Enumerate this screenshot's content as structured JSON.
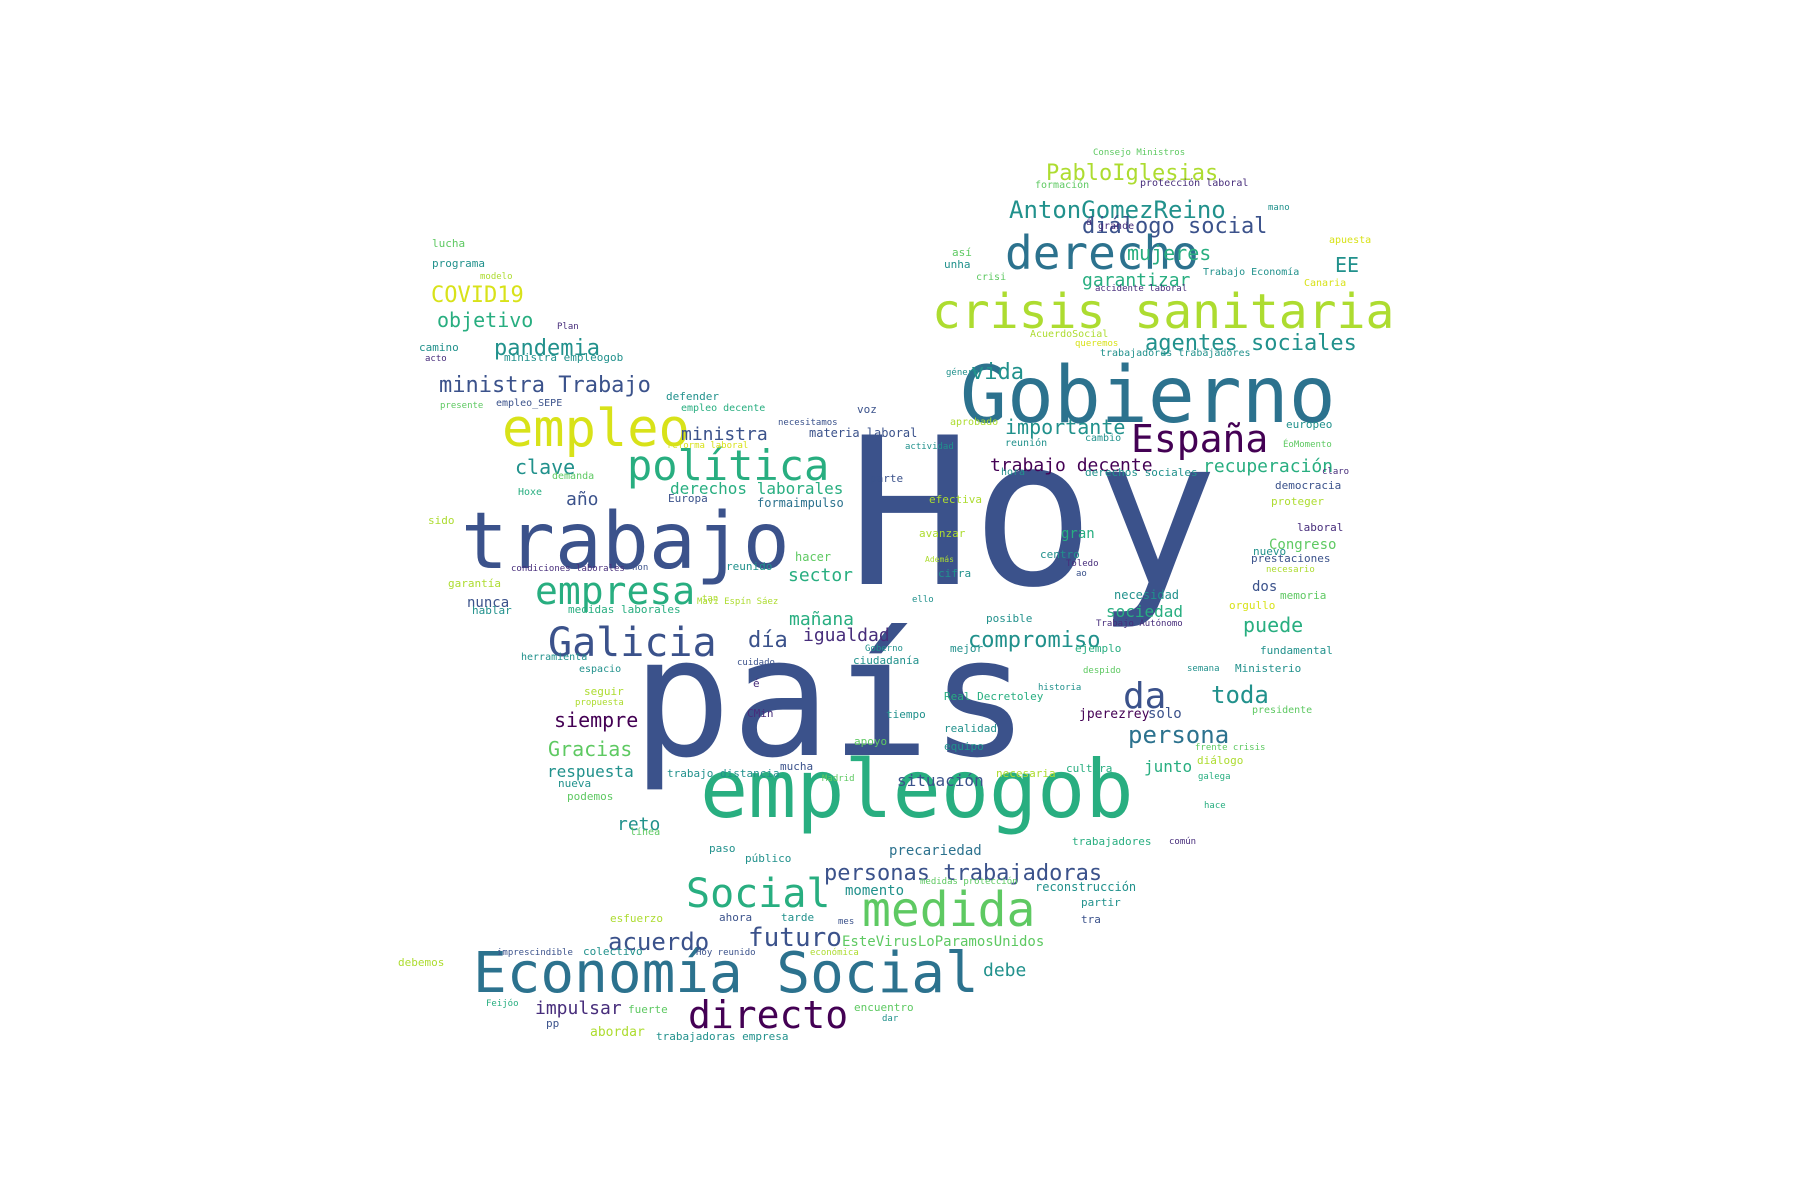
{
  "palette": {
    "dark_purple": "#440154",
    "purple": "#472d7b",
    "indigo": "#3b528b",
    "blue": "#2c728e",
    "teal": "#21918c",
    "green_teal": "#28ae80",
    "green": "#5ec962",
    "lime": "#addc30",
    "yellow": "#d8e219",
    "background": "#ffffff"
  },
  "words": [
    "Hoy",
    "país",
    "empleogob",
    "Gobierno",
    "trabajo",
    "Economía Social",
    "crisis sanitaria",
    "derecho",
    "empleo",
    "medida",
    "política",
    "empresa",
    "Galicia",
    "España",
    "directo",
    "Social",
    "AntonGomezReino",
    "PabloIglesias",
    "diálogo social",
    "agentes sociales",
    "compromiso",
    "futuro",
    "acuerdo",
    "personas trabajadoras",
    "da",
    "toda",
    "persona",
    "pandemia",
    "ministra Trabajo",
    "COVID19",
    "objetivo",
    "mujeres",
    "EE",
    "garantizar",
    "vida",
    "importante",
    "trabajo decente",
    "recuperación",
    "clave",
    "año",
    "ministra",
    "derechos laborales",
    "sector",
    "mañana",
    "día",
    "igualdad",
    "puede",
    "sociedad",
    "siempre",
    "Gracias",
    "respuesta",
    "reto",
    "impulsar",
    "debe",
    "Congreso",
    "dos",
    "junto",
    "solo",
    "situación",
    "precariedad",
    "momento",
    "EsteVirusLoParamosUnidos",
    "nunca",
    "gran",
    "necesidad",
    "hacer",
    "formaimpulso",
    "materia laboral",
    "lucha",
    "programa",
    "modelo",
    "camino",
    "acto",
    "Plan",
    "ministra empleogob",
    "empleo_SEPE",
    "presente",
    "defender",
    "empleo decente",
    "reforma laboral",
    "demanda",
    "Hoxe",
    "sido",
    "garantía",
    "condiciones laborales",
    "non",
    "medidas laborales",
    "hablar",
    "herramienta",
    "espacio",
    "seguir",
    "propuesta",
    "podemos",
    "nueva",
    "línea",
    "paso",
    "público",
    "trabajo distancia",
    "mucha",
    "Madrid",
    "necesaria",
    "cultura",
    "diálogo",
    "galega",
    "frente crisis",
    "hace",
    "común",
    "trabajadores",
    "reconstrucción",
    "partir",
    "tra",
    "ahora",
    "tarde",
    "esfuerzo",
    "colectivo",
    "Hoy reunido",
    "imprescindible",
    "económica",
    "debemos",
    "Feijóo",
    "fuerte",
    "pp",
    "abordar",
    "trabajadoras empresa",
    "encuentro",
    "dar",
    "mes",
    "medidas protección",
    "Consejo Ministros",
    "formación",
    "protección laboral",
    "mano",
    "grande",
    "á",
    "apuesta",
    "así",
    "unha",
    "Trabajo Economía",
    "crisi",
    "Canaria",
    "accidente laboral",
    "AcuerdoSocial",
    "queremos",
    "trabajadoras trabajadores",
    "género",
    "aprobado",
    "actividad",
    "cambio",
    "reunión",
    "hora",
    "derechos sociales",
    "europeo",
    "ÉoMomento",
    "claro",
    "democracia",
    "proteger",
    "laboral",
    "nuevo",
    "prestaciones",
    "necesario",
    "orgullo",
    "memoria",
    "Trabajo Autónomo",
    "ejemplo",
    "despido",
    "semana",
    "Ministerio",
    "fundamental",
    "presidente",
    "voz",
    "parte",
    "Europa",
    "efectiva",
    "avanzar",
    "centro",
    "Toledo",
    "ao",
    "cifra",
    "Además",
    "reunido",
    "Mavi Espín Sáez",
    "tan",
    "ello",
    "posible",
    "mejor",
    "ciudadanía",
    "Goberno",
    "cuidado",
    "é",
    "CMin",
    "Real Decretoley",
    "historia",
    "jperezrey",
    "realidad",
    "equipo",
    "tiempo",
    "apoyo",
    "necesitamos"
  ]
}
